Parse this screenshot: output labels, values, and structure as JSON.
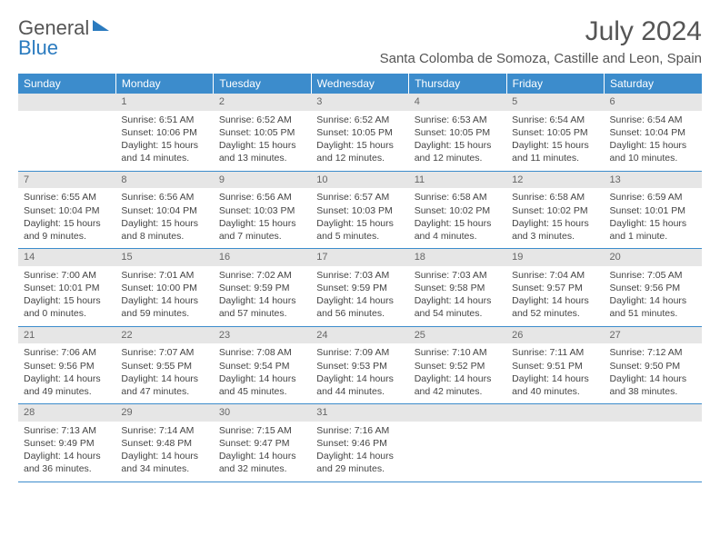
{
  "logo": {
    "part1": "General",
    "part2": "Blue"
  },
  "title": "July 2024",
  "subtitle": "Santa Colomba de Somoza, Castille and Leon, Spain",
  "colors": {
    "header_bg": "#3c8ccc",
    "header_text": "#ffffff",
    "daynum_bg": "#e6e6e6",
    "daynum_text": "#666666",
    "border": "#3c8ccc",
    "body_text": "#444444",
    "title_text": "#555555",
    "logo_blue": "#2b7bbf"
  },
  "typography": {
    "title_fontsize": 30,
    "subtitle_fontsize": 15,
    "weekday_fontsize": 12,
    "daynum_fontsize": 11,
    "cell_fontsize": 10.5
  },
  "weekdays": [
    "Sunday",
    "Monday",
    "Tuesday",
    "Wednesday",
    "Thursday",
    "Friday",
    "Saturday"
  ],
  "weeks": [
    [
      {
        "n": "",
        "sr": "",
        "ss": "",
        "dl": ""
      },
      {
        "n": "1",
        "sr": "Sunrise: 6:51 AM",
        "ss": "Sunset: 10:06 PM",
        "dl": "Daylight: 15 hours and 14 minutes."
      },
      {
        "n": "2",
        "sr": "Sunrise: 6:52 AM",
        "ss": "Sunset: 10:05 PM",
        "dl": "Daylight: 15 hours and 13 minutes."
      },
      {
        "n": "3",
        "sr": "Sunrise: 6:52 AM",
        "ss": "Sunset: 10:05 PM",
        "dl": "Daylight: 15 hours and 12 minutes."
      },
      {
        "n": "4",
        "sr": "Sunrise: 6:53 AM",
        "ss": "Sunset: 10:05 PM",
        "dl": "Daylight: 15 hours and 12 minutes."
      },
      {
        "n": "5",
        "sr": "Sunrise: 6:54 AM",
        "ss": "Sunset: 10:05 PM",
        "dl": "Daylight: 15 hours and 11 minutes."
      },
      {
        "n": "6",
        "sr": "Sunrise: 6:54 AM",
        "ss": "Sunset: 10:04 PM",
        "dl": "Daylight: 15 hours and 10 minutes."
      }
    ],
    [
      {
        "n": "7",
        "sr": "Sunrise: 6:55 AM",
        "ss": "Sunset: 10:04 PM",
        "dl": "Daylight: 15 hours and 9 minutes."
      },
      {
        "n": "8",
        "sr": "Sunrise: 6:56 AM",
        "ss": "Sunset: 10:04 PM",
        "dl": "Daylight: 15 hours and 8 minutes."
      },
      {
        "n": "9",
        "sr": "Sunrise: 6:56 AM",
        "ss": "Sunset: 10:03 PM",
        "dl": "Daylight: 15 hours and 7 minutes."
      },
      {
        "n": "10",
        "sr": "Sunrise: 6:57 AM",
        "ss": "Sunset: 10:03 PM",
        "dl": "Daylight: 15 hours and 5 minutes."
      },
      {
        "n": "11",
        "sr": "Sunrise: 6:58 AM",
        "ss": "Sunset: 10:02 PM",
        "dl": "Daylight: 15 hours and 4 minutes."
      },
      {
        "n": "12",
        "sr": "Sunrise: 6:58 AM",
        "ss": "Sunset: 10:02 PM",
        "dl": "Daylight: 15 hours and 3 minutes."
      },
      {
        "n": "13",
        "sr": "Sunrise: 6:59 AM",
        "ss": "Sunset: 10:01 PM",
        "dl": "Daylight: 15 hours and 1 minute."
      }
    ],
    [
      {
        "n": "14",
        "sr": "Sunrise: 7:00 AM",
        "ss": "Sunset: 10:01 PM",
        "dl": "Daylight: 15 hours and 0 minutes."
      },
      {
        "n": "15",
        "sr": "Sunrise: 7:01 AM",
        "ss": "Sunset: 10:00 PM",
        "dl": "Daylight: 14 hours and 59 minutes."
      },
      {
        "n": "16",
        "sr": "Sunrise: 7:02 AM",
        "ss": "Sunset: 9:59 PM",
        "dl": "Daylight: 14 hours and 57 minutes."
      },
      {
        "n": "17",
        "sr": "Sunrise: 7:03 AM",
        "ss": "Sunset: 9:59 PM",
        "dl": "Daylight: 14 hours and 56 minutes."
      },
      {
        "n": "18",
        "sr": "Sunrise: 7:03 AM",
        "ss": "Sunset: 9:58 PM",
        "dl": "Daylight: 14 hours and 54 minutes."
      },
      {
        "n": "19",
        "sr": "Sunrise: 7:04 AM",
        "ss": "Sunset: 9:57 PM",
        "dl": "Daylight: 14 hours and 52 minutes."
      },
      {
        "n": "20",
        "sr": "Sunrise: 7:05 AM",
        "ss": "Sunset: 9:56 PM",
        "dl": "Daylight: 14 hours and 51 minutes."
      }
    ],
    [
      {
        "n": "21",
        "sr": "Sunrise: 7:06 AM",
        "ss": "Sunset: 9:56 PM",
        "dl": "Daylight: 14 hours and 49 minutes."
      },
      {
        "n": "22",
        "sr": "Sunrise: 7:07 AM",
        "ss": "Sunset: 9:55 PM",
        "dl": "Daylight: 14 hours and 47 minutes."
      },
      {
        "n": "23",
        "sr": "Sunrise: 7:08 AM",
        "ss": "Sunset: 9:54 PM",
        "dl": "Daylight: 14 hours and 45 minutes."
      },
      {
        "n": "24",
        "sr": "Sunrise: 7:09 AM",
        "ss": "Sunset: 9:53 PM",
        "dl": "Daylight: 14 hours and 44 minutes."
      },
      {
        "n": "25",
        "sr": "Sunrise: 7:10 AM",
        "ss": "Sunset: 9:52 PM",
        "dl": "Daylight: 14 hours and 42 minutes."
      },
      {
        "n": "26",
        "sr": "Sunrise: 7:11 AM",
        "ss": "Sunset: 9:51 PM",
        "dl": "Daylight: 14 hours and 40 minutes."
      },
      {
        "n": "27",
        "sr": "Sunrise: 7:12 AM",
        "ss": "Sunset: 9:50 PM",
        "dl": "Daylight: 14 hours and 38 minutes."
      }
    ],
    [
      {
        "n": "28",
        "sr": "Sunrise: 7:13 AM",
        "ss": "Sunset: 9:49 PM",
        "dl": "Daylight: 14 hours and 36 minutes."
      },
      {
        "n": "29",
        "sr": "Sunrise: 7:14 AM",
        "ss": "Sunset: 9:48 PM",
        "dl": "Daylight: 14 hours and 34 minutes."
      },
      {
        "n": "30",
        "sr": "Sunrise: 7:15 AM",
        "ss": "Sunset: 9:47 PM",
        "dl": "Daylight: 14 hours and 32 minutes."
      },
      {
        "n": "31",
        "sr": "Sunrise: 7:16 AM",
        "ss": "Sunset: 9:46 PM",
        "dl": "Daylight: 14 hours and 29 minutes."
      },
      {
        "n": "",
        "sr": "",
        "ss": "",
        "dl": ""
      },
      {
        "n": "",
        "sr": "",
        "ss": "",
        "dl": ""
      },
      {
        "n": "",
        "sr": "",
        "ss": "",
        "dl": ""
      }
    ]
  ]
}
